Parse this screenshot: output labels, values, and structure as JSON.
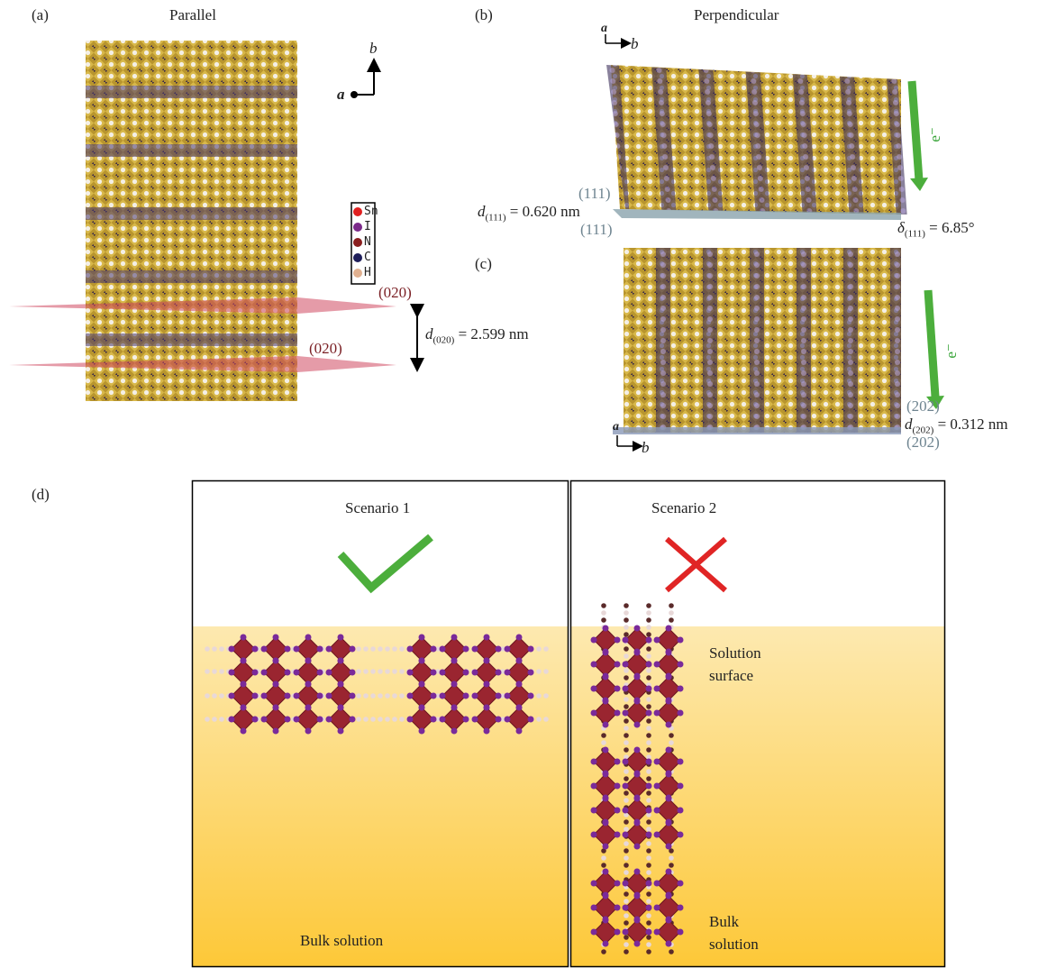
{
  "panels": {
    "a": {
      "label": "(a)",
      "title": "Parallel",
      "axes": {
        "vertical": "b",
        "horizontal": "a"
      },
      "legend": [
        "Sn",
        "I",
        "N",
        "C",
        "H"
      ],
      "planes": [
        "(020)",
        "(020)"
      ],
      "spacing": {
        "symbol": "d",
        "subscript": "(020)",
        "text": "= 2.599 nm"
      }
    },
    "b": {
      "label": "(b)",
      "title": "Perpendicular",
      "axes": {
        "vertical": "a",
        "horizontal": "b"
      },
      "planes": [
        "(111)",
        "(111)"
      ],
      "spacing": {
        "symbol": "d",
        "subscript": "(111)",
        "text": "= 0.620 nm"
      },
      "angle": {
        "symbol": "δ",
        "subscript": "(111)",
        "text": "= 6.85°"
      },
      "electron": "e⁻"
    },
    "c": {
      "label": "(c)",
      "axes": {
        "vertical": "a",
        "horizontal": "b"
      },
      "planes": [
        "(202)",
        "(202)"
      ],
      "spacing": {
        "symbol": "d",
        "subscript": "(202)",
        "text": "= 0.312 nm"
      },
      "electron": "e⁻"
    },
    "d": {
      "label": "(d)",
      "scenarios": [
        {
          "title": "Scenario 1",
          "bulk": "Bulk solution"
        },
        {
          "title": "Scenario 2",
          "surface": "Solution surface",
          "bulk": "Bulk solution"
        }
      ]
    }
  }
}
